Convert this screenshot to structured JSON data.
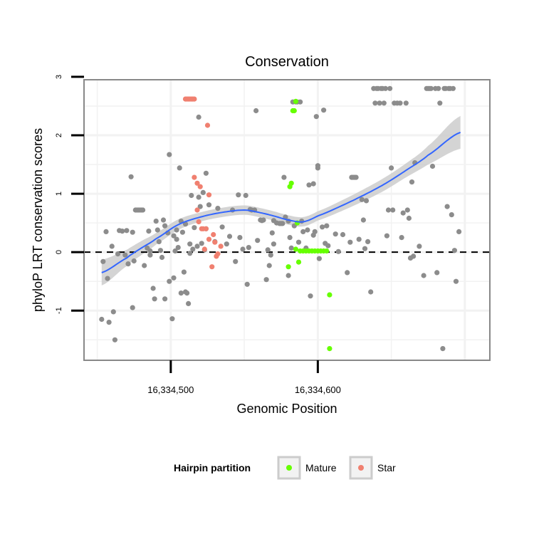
{
  "chart_data": {
    "type": "scatter",
    "title": "Conservation",
    "xlabel": "Genomic Position",
    "ylabel": "phyloP LRT conservation scores",
    "xlim": [
      16334441,
      16334717
    ],
    "ylim": [
      -1.85,
      2.95
    ],
    "x_ticks": [
      {
        "value": 16334500,
        "label": "16,334,500"
      },
      {
        "value": 16334600,
        "label": "16,334,600"
      }
    ],
    "y_ticks": [
      {
        "value": 3,
        "label": "3"
      },
      {
        "value": 2,
        "label": "2"
      },
      {
        "value": 1,
        "label": "1"
      },
      {
        "value": 0,
        "label": "0"
      },
      {
        "value": -1,
        "label": "-1"
      }
    ],
    "reference_line": {
      "y": 0,
      "style": "dashed"
    },
    "colors": {
      "Other": "#8c8c8c",
      "Mature": "#66ff00",
      "Star": "#f08070",
      "smooth": "#3366ff",
      "band": "#cccccc",
      "panel_bg": "#ffffff",
      "grid": "#f2f2f2"
    },
    "legend": {
      "title": "Hairpin partition",
      "position": "bottom",
      "entries": [
        {
          "label": "Mature",
          "series": "Mature"
        },
        {
          "label": "Star",
          "series": "Star"
        }
      ]
    },
    "series": [
      {
        "name": "Other",
        "points": [
          [
            16334453,
            -1.15
          ],
          [
            16334454,
            -0.16
          ],
          [
            16334456,
            0.35
          ],
          [
            16334457,
            -0.45
          ],
          [
            16334458,
            -1.2
          ],
          [
            16334460,
            0.1
          ],
          [
            16334461,
            -1.02
          ],
          [
            16334462,
            -1.5
          ],
          [
            16334464,
            -0.03
          ],
          [
            16334465,
            0.37
          ],
          [
            16334467,
            0.36
          ],
          [
            16334469,
            -0.05
          ],
          [
            16334470,
            0.37
          ],
          [
            16334471,
            -0.2
          ],
          [
            16334473,
            1.29
          ],
          [
            16334474,
            -0.95
          ],
          [
            16334474,
            0.34
          ],
          [
            16334475,
            -0.15
          ],
          [
            16334476,
            0.72
          ],
          [
            16334477,
            0.72
          ],
          [
            16334478,
            0.72
          ],
          [
            16334479,
            0.72
          ],
          [
            16334480,
            0.72
          ],
          [
            16334481,
            0.72
          ],
          [
            16334482,
            -0.23
          ],
          [
            16334484,
            0.07
          ],
          [
            16334485,
            0.36
          ],
          [
            16334486,
            0.02
          ],
          [
            16334486,
            -0.05
          ],
          [
            16334488,
            -0.62
          ],
          [
            16334489,
            -0.8
          ],
          [
            16334490,
            0.53
          ],
          [
            16334491,
            0.38
          ],
          [
            16334492,
            0.18
          ],
          [
            16334493,
            0.03
          ],
          [
            16334494,
            -0.09
          ],
          [
            16334495,
            0.55
          ],
          [
            16334496,
            0.45
          ],
          [
            16334496,
            -0.8
          ],
          [
            16334498,
            0.33
          ],
          [
            16334499,
            -0.5
          ],
          [
            16334499,
            1.67
          ],
          [
            16334501,
            -1.14
          ],
          [
            16334502,
            -0.44
          ],
          [
            16334502,
            0.28
          ],
          [
            16334503,
            0.02
          ],
          [
            16334504,
            0.38
          ],
          [
            16334504,
            0.22
          ],
          [
            16334505,
            0.08
          ],
          [
            16334506,
            1.44
          ],
          [
            16334507,
            -0.7
          ],
          [
            16334507,
            0.53
          ],
          [
            16334508,
            0.34
          ],
          [
            16334509,
            -0.34
          ],
          [
            16334510,
            -0.68
          ],
          [
            16334510,
            0.48
          ],
          [
            16334511,
            -0.7
          ],
          [
            16334512,
            -0.88
          ],
          [
            16334513,
            0.14
          ],
          [
            16334513,
            -0.02
          ],
          [
            16334514,
            0.97
          ],
          [
            16334515,
            0.05
          ],
          [
            16334516,
            0.42
          ],
          [
            16334518,
            0.1
          ],
          [
            16334519,
            2.31
          ],
          [
            16334519,
            0.94
          ],
          [
            16334520,
            0.78
          ],
          [
            16334521,
            0.15
          ],
          [
            16334522,
            1.02
          ],
          [
            16334523,
            0.04
          ],
          [
            16334524,
            0.4
          ],
          [
            16334524,
            1.35
          ],
          [
            16334526,
            0.81
          ],
          [
            16334530,
            0.18
          ],
          [
            16334532,
            0.75
          ],
          [
            16334535,
            0.43
          ],
          [
            16334538,
            0.14
          ],
          [
            16334540,
            0.27
          ],
          [
            16334542,
            0.72
          ],
          [
            16334544,
            -0.16
          ],
          [
            16334546,
            0.98
          ],
          [
            16334547,
            0.25
          ],
          [
            16334549,
            0.05
          ],
          [
            16334551,
            0.97
          ],
          [
            16334552,
            -0.55
          ],
          [
            16334553,
            0.08
          ],
          [
            16334554,
            0.73
          ],
          [
            16334555,
            0.72
          ],
          [
            16334557,
            0.72
          ],
          [
            16334558,
            2.42
          ],
          [
            16334559,
            0.2
          ],
          [
            16334561,
            0.55
          ],
          [
            16334562,
            0.54
          ],
          [
            16334563,
            0.55
          ],
          [
            16334565,
            -0.47
          ],
          [
            16334566,
            0.04
          ],
          [
            16334567,
            -0.23
          ],
          [
            16334568,
            -0.05
          ],
          [
            16334569,
            0.33
          ],
          [
            16334570,
            0.14
          ],
          [
            16334570,
            0.54
          ],
          [
            16334572,
            0.5
          ],
          [
            16334574,
            0.49
          ],
          [
            16334575,
            0.49
          ],
          [
            16334576,
            0.49
          ],
          [
            16334577,
            1.28
          ],
          [
            16334578,
            0.6
          ],
          [
            16334580,
            0.53
          ],
          [
            16334580,
            -0.4
          ],
          [
            16334581,
            0.25
          ],
          [
            16334582,
            0.07
          ],
          [
            16334583,
            2.57
          ],
          [
            16334584,
            0.45
          ],
          [
            16334585,
            2.57
          ],
          [
            16334586,
            2.57
          ],
          [
            16334587,
            0.17
          ],
          [
            16334588,
            2.57
          ],
          [
            16334589,
            0.53
          ],
          [
            16334590,
            0.35
          ],
          [
            16334592,
            0.07
          ],
          [
            16334593,
            0.38
          ],
          [
            16334594,
            1.15
          ],
          [
            16334595,
            -0.75
          ],
          [
            16334597,
            1.17
          ],
          [
            16334597,
            0.29
          ],
          [
            16334598,
            0.35
          ],
          [
            16334599,
            2.32
          ],
          [
            16334600,
            1.44
          ],
          [
            16334600,
            1.48
          ],
          [
            16334601,
            -0.11
          ],
          [
            16334603,
            0.43
          ],
          [
            16334604,
            2.43
          ],
          [
            16334605,
            0.15
          ],
          [
            16334606,
            0.45
          ],
          [
            16334607,
            0.11
          ],
          [
            16334612,
            0.31
          ],
          [
            16334614,
            0.01
          ],
          [
            16334617,
            0.3
          ],
          [
            16334620,
            -0.35
          ],
          [
            16334622,
            0.17
          ],
          [
            16334623,
            1.28
          ],
          [
            16334624,
            1.28
          ],
          [
            16334625,
            1.28
          ],
          [
            16334626,
            1.28
          ],
          [
            16334628,
            0.22
          ],
          [
            16334630,
            0.9
          ],
          [
            16334631,
            0.55
          ],
          [
            16334632,
            0.06
          ],
          [
            16334633,
            0.88
          ],
          [
            16334634,
            0.18
          ],
          [
            16334636,
            -0.68
          ],
          [
            16334638,
            2.8
          ],
          [
            16334639,
            2.55
          ],
          [
            16334640,
            2.8
          ],
          [
            16334641,
            2.8
          ],
          [
            16334642,
            2.55
          ],
          [
            16334643,
            2.8
          ],
          [
            16334644,
            2.8
          ],
          [
            16334645,
            2.55
          ],
          [
            16334646,
            2.8
          ],
          [
            16334647,
            0.28
          ],
          [
            16334648,
            0.72
          ],
          [
            16334649,
            2.8
          ],
          [
            16334650,
            1.44
          ],
          [
            16334651,
            0.72
          ],
          [
            16334652,
            2.55
          ],
          [
            16334654,
            2.55
          ],
          [
            16334656,
            2.55
          ],
          [
            16334657,
            0.25
          ],
          [
            16334658,
            0.67
          ],
          [
            16334660,
            2.55
          ],
          [
            16334661,
            0.72
          ],
          [
            16334662,
            0.58
          ],
          [
            16334663,
            -0.1
          ],
          [
            16334664,
            1.2
          ],
          [
            16334665,
            -0.07
          ],
          [
            16334666,
            1.53
          ],
          [
            16334669,
            0.1
          ],
          [
            16334672,
            -0.4
          ],
          [
            16334674,
            2.8
          ],
          [
            16334675,
            2.8
          ],
          [
            16334676,
            2.8
          ],
          [
            16334677,
            2.8
          ],
          [
            16334678,
            1.47
          ],
          [
            16334680,
            2.8
          ],
          [
            16334681,
            -0.35
          ],
          [
            16334682,
            2.8
          ],
          [
            16334683,
            2.55
          ],
          [
            16334685,
            -1.65
          ],
          [
            16334686,
            2.8
          ],
          [
            16334687,
            2.8
          ],
          [
            16334688,
            0.78
          ],
          [
            16334689,
            2.8
          ],
          [
            16334690,
            2.8
          ],
          [
            16334691,
            0.64
          ],
          [
            16334692,
            2.8
          ],
          [
            16334693,
            0.03
          ],
          [
            16334694,
            -0.5
          ],
          [
            16334696,
            0.35
          ]
        ]
      },
      {
        "name": "Mature",
        "points": [
          [
            16334580,
            -0.25
          ],
          [
            16334581,
            1.12
          ],
          [
            16334582,
            1.18
          ],
          [
            16334583,
            2.42
          ],
          [
            16334584,
            2.42
          ],
          [
            16334585,
            2.58
          ],
          [
            16334585,
            0.05
          ],
          [
            16334586,
            0.5
          ],
          [
            16334587,
            -0.17
          ],
          [
            16334588,
            0.02
          ],
          [
            16334590,
            0.02
          ],
          [
            16334592,
            0.02
          ],
          [
            16334594,
            0.02
          ],
          [
            16334596,
            0.02
          ],
          [
            16334598,
            0.02
          ],
          [
            16334600,
            0.02
          ],
          [
            16334602,
            0.02
          ],
          [
            16334604,
            0.02
          ],
          [
            16334606,
            0.02
          ],
          [
            16334608,
            -0.73
          ],
          [
            16334608,
            -1.65
          ]
        ]
      },
      {
        "name": "Star",
        "points": [
          [
            16334510,
            2.62
          ],
          [
            16334511,
            2.62
          ],
          [
            16334512,
            2.62
          ],
          [
            16334513,
            2.62
          ],
          [
            16334514,
            2.62
          ],
          [
            16334515,
            2.62
          ],
          [
            16334516,
            2.62
          ],
          [
            16334516,
            1.28
          ],
          [
            16334518,
            1.18
          ],
          [
            16334518,
            0.72
          ],
          [
            16334519,
            0.52
          ],
          [
            16334520,
            1.12
          ],
          [
            16334521,
            0.4
          ],
          [
            16334522,
            0.4
          ],
          [
            16334523,
            0.05
          ],
          [
            16334524,
            0.4
          ],
          [
            16334525,
            2.17
          ],
          [
            16334526,
            0.98
          ],
          [
            16334526,
            0.22
          ],
          [
            16334528,
            -0.25
          ],
          [
            16334529,
            0.3
          ],
          [
            16334530,
            0.17
          ],
          [
            16334531,
            -0.07
          ],
          [
            16334532,
            -0.03
          ],
          [
            16334534,
            0.1
          ]
        ]
      }
    ],
    "smooth": {
      "method": "loess",
      "x": [
        16334453,
        16334470,
        16334480,
        16334490,
        16334505,
        16334520,
        16334535,
        16334550,
        16334560,
        16334570,
        16334580,
        16334590,
        16334600,
        16334615,
        16334630,
        16334645,
        16334660,
        16334675,
        16334697
      ],
      "y": [
        -0.35,
        -0.1,
        0.07,
        0.23,
        0.47,
        0.6,
        0.68,
        0.72,
        0.68,
        0.62,
        0.55,
        0.52,
        0.62,
        0.78,
        0.96,
        1.16,
        1.4,
        1.66,
        2.05
      ],
      "se": [
        0.22,
        0.14,
        0.12,
        0.1,
        0.09,
        0.08,
        0.08,
        0.08,
        0.08,
        0.08,
        0.08,
        0.08,
        0.08,
        0.09,
        0.1,
        0.11,
        0.12,
        0.16,
        0.28
      ]
    }
  }
}
